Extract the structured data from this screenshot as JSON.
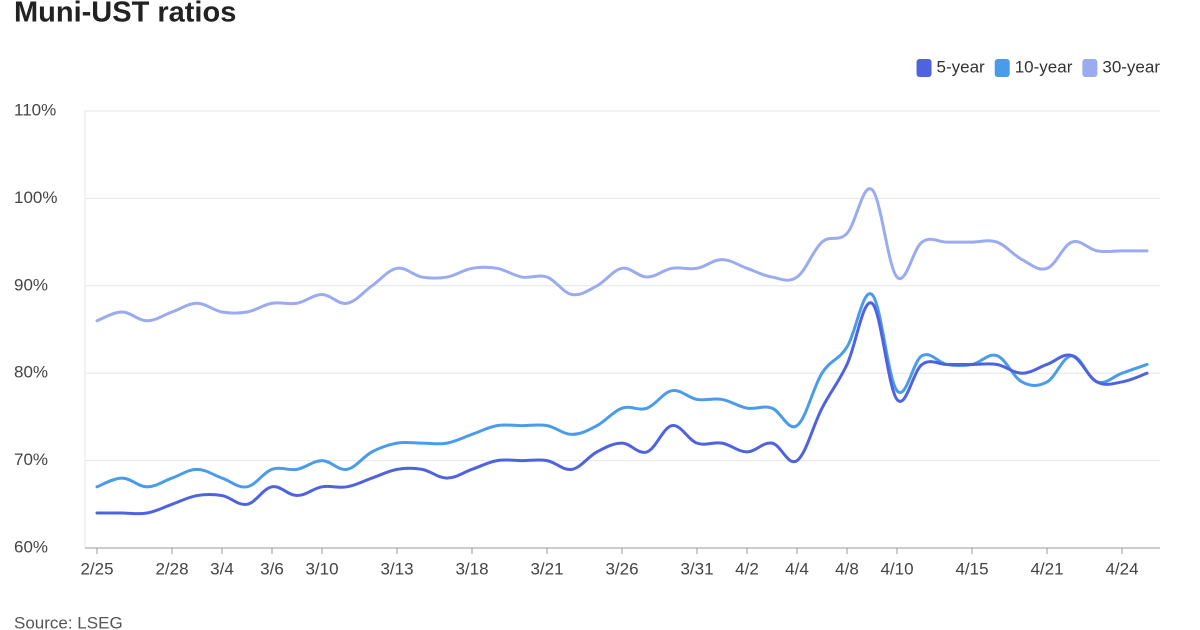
{
  "chart_data": {
    "type": "line",
    "title": "Muni-UST ratios",
    "source": "Source: LSEG",
    "categories": [
      "2/25",
      null,
      null,
      "2/28",
      null,
      "3/4",
      null,
      "3/6",
      null,
      "3/10",
      null,
      null,
      "3/13",
      null,
      null,
      "3/18",
      null,
      null,
      "3/21",
      null,
      null,
      "3/26",
      null,
      null,
      "3/31",
      null,
      "4/2",
      null,
      "4/4",
      null,
      "4/8",
      null,
      "4/10",
      null,
      null,
      "4/15",
      null,
      null,
      "4/21",
      null,
      null,
      "4/24",
      null
    ],
    "series": [
      {
        "name": "5-year",
        "color": "#4f63de",
        "values": [
          64,
          64,
          64,
          65,
          66,
          66,
          65,
          67,
          66,
          67,
          67,
          68,
          69,
          69,
          68,
          69,
          70,
          70,
          70,
          69,
          71,
          72,
          71,
          74,
          72,
          72,
          71,
          72,
          70,
          76,
          81,
          88,
          77,
          81,
          81,
          81,
          81,
          80,
          81,
          82,
          79,
          79,
          80
        ]
      },
      {
        "name": "10-year",
        "color": "#4a9bea",
        "values": [
          67,
          68,
          67,
          68,
          69,
          68,
          67,
          69,
          69,
          70,
          69,
          71,
          72,
          72,
          72,
          73,
          74,
          74,
          74,
          73,
          74,
          76,
          76,
          78,
          77,
          77,
          76,
          76,
          74,
          80,
          83,
          89,
          78,
          82,
          81,
          81,
          82,
          79,
          79,
          82,
          79,
          80,
          81
        ]
      },
      {
        "name": "30-year",
        "color": "#9aabf0",
        "values": [
          86,
          87,
          86,
          87,
          88,
          87,
          87,
          88,
          88,
          89,
          88,
          90,
          92,
          91,
          91,
          92,
          92,
          91,
          91,
          89,
          90,
          92,
          91,
          92,
          92,
          93,
          92,
          91,
          91,
          95,
          96,
          101,
          91,
          95,
          95,
          95,
          95,
          93,
          92,
          95,
          94,
          94,
          94
        ]
      }
    ],
    "ylim": [
      60,
      110
    ],
    "yticks": [
      {
        "value": 60,
        "label": "60%"
      },
      {
        "value": 70,
        "label": "70%"
      },
      {
        "value": 80,
        "label": "80%"
      },
      {
        "value": 90,
        "label": "90%"
      },
      {
        "value": 100,
        "label": "100%"
      },
      {
        "value": 110,
        "label": "110%"
      }
    ],
    "grid": true,
    "legend": "top-right"
  }
}
